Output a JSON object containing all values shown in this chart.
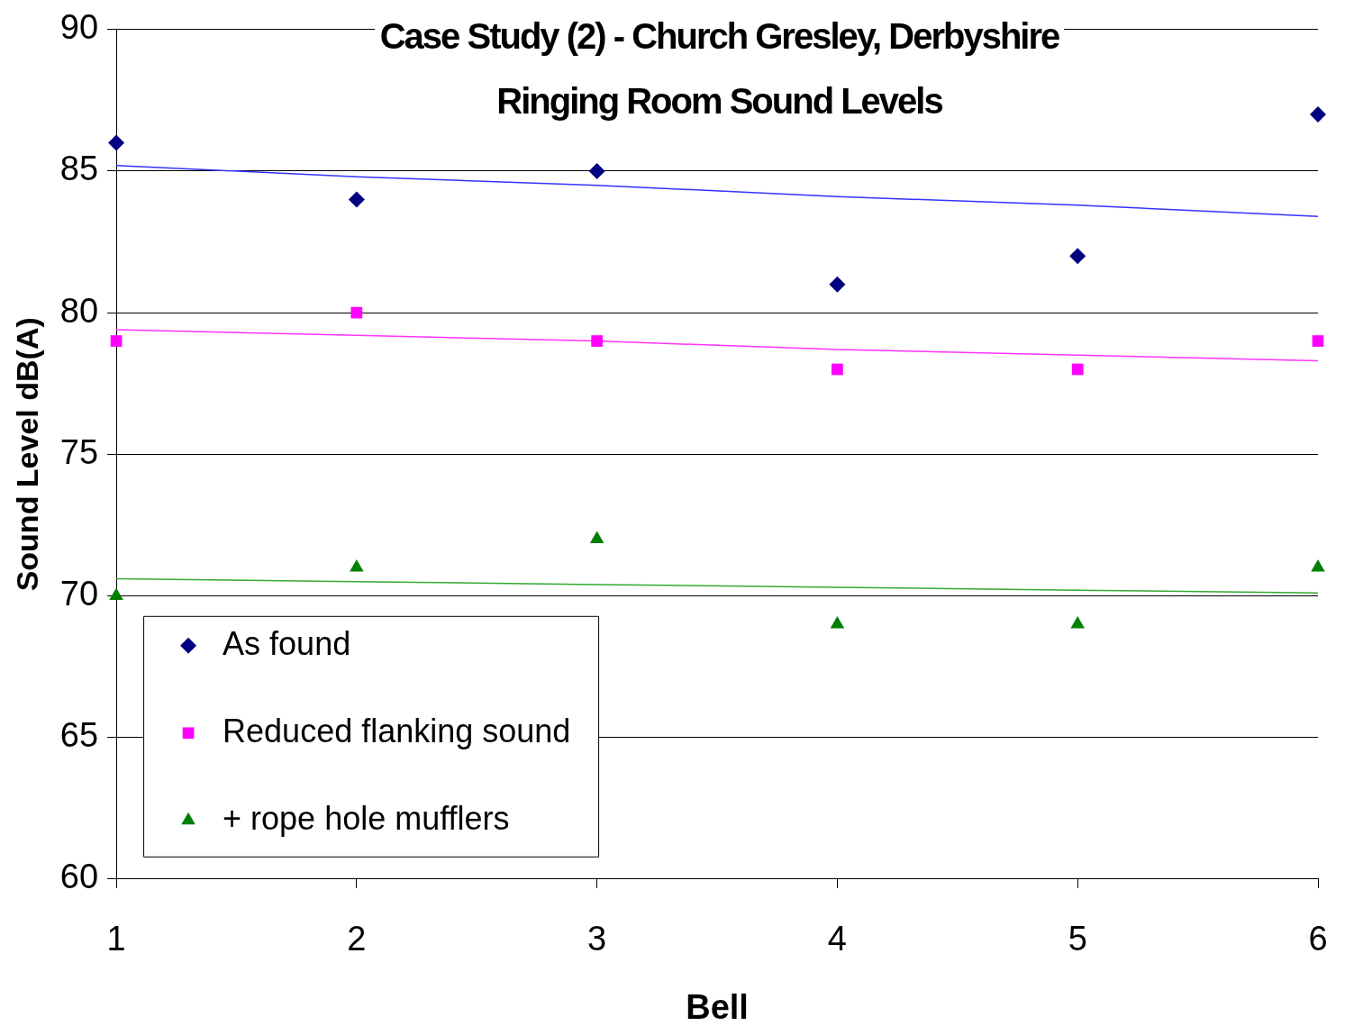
{
  "chart_data": {
    "type": "scatter",
    "title": "Case Study (2) - Church Gresley, Derbyshire",
    "subtitle": "Ringing Room Sound Levels",
    "xlabel": "Bell",
    "ylabel": "Sound Level dB(A)",
    "x": [
      1,
      2,
      3,
      4,
      5,
      6
    ],
    "series": [
      {
        "name": "As found",
        "color": "#000080",
        "marker": "diamond",
        "values": [
          86,
          84,
          85,
          81,
          82,
          87
        ]
      },
      {
        "name": "Reduced flanking sound",
        "color": "#ff00ff",
        "marker": "square",
        "values": [
          79,
          80,
          79,
          78,
          78,
          79
        ]
      },
      {
        "name": "+ rope hole mufflers",
        "color": "#008000",
        "marker": "triangle",
        "values": [
          70,
          71,
          72,
          69,
          69,
          71
        ]
      },
      {
        "type": "line",
        "color": "#3333ff",
        "marker": "none",
        "values": [
          85.2,
          84.8,
          84.5,
          84.1,
          83.8,
          83.4
        ]
      },
      {
        "type": "line",
        "color": "#ff33ff",
        "marker": "none",
        "values": [
          79.4,
          79.2,
          79.0,
          78.7,
          78.5,
          78.3
        ]
      },
      {
        "type": "line",
        "color": "#33aa33",
        "marker": "none",
        "values": [
          70.6,
          70.5,
          70.4,
          70.3,
          70.2,
          70.1
        ]
      }
    ],
    "xlim": [
      1,
      6
    ],
    "xticks": [
      1,
      2,
      3,
      4,
      5,
      6
    ],
    "ylim": [
      60,
      90
    ],
    "yticks": [
      60,
      65,
      70,
      75,
      80,
      85,
      90
    ],
    "grid": "y",
    "legend": "bottom left"
  }
}
